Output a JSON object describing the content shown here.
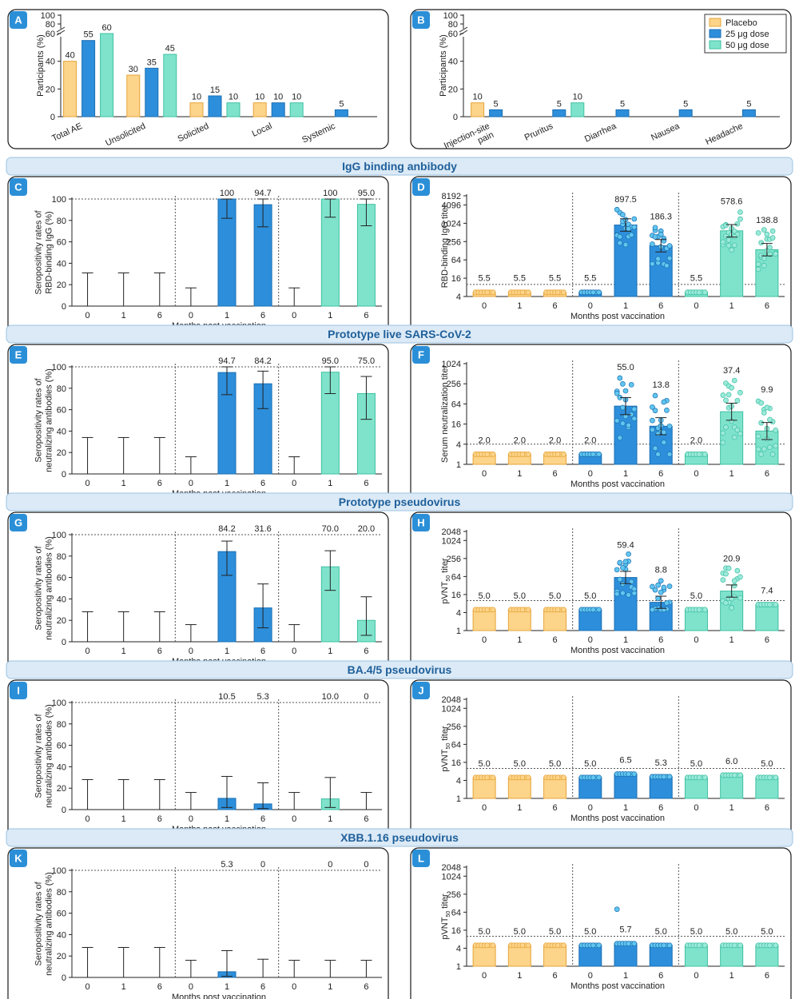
{
  "colors": {
    "placebo": "#fcd48a",
    "placebo_edge": "#e6a53a",
    "d25": "#2d8fdb",
    "d25_edge": "#1b6fb3",
    "d50": "#7fe3cc",
    "d50_edge": "#3ec1a2",
    "dot25": "#61c6ee",
    "dot50": "#9be9da"
  },
  "legend": [
    "Placebo",
    "25 μg dose",
    "50 μg dose"
  ],
  "section_titles": [
    "IgG binding anbibody",
    "Prototype live SARS-CoV-2",
    "Prototype pseudovirus",
    "BA.4/5 pseudovirus",
    "XBB.1.16 pseudovirus"
  ],
  "xlabel": "Months post vaccination",
  "months": [
    "0",
    "1",
    "6"
  ],
  "chart_data": [
    {
      "panel": "A",
      "type": "bar",
      "ylabel": "Participants (%)",
      "yticks": [
        "0",
        "20",
        "40",
        "60",
        "80",
        "100"
      ],
      "categories": [
        "Total AE",
        "Unsolicited",
        "Solicited",
        "Local",
        "Systemic"
      ],
      "series": [
        {
          "name": "Placebo",
          "values": [
            40,
            30,
            10,
            10,
            null
          ]
        },
        {
          "name": "25 μg dose",
          "values": [
            55,
            35,
            15,
            10,
            5
          ]
        },
        {
          "name": "50 μg dose",
          "values": [
            60,
            45,
            10,
            10,
            null
          ]
        }
      ],
      "labels": [
        [
          "40",
          "55",
          "60"
        ],
        [
          "30",
          "35",
          "45"
        ],
        [
          "10",
          "15",
          "10"
        ],
        [
          "10",
          "10",
          "10"
        ],
        [
          "",
          "5",
          ""
        ]
      ]
    },
    {
      "panel": "B",
      "type": "bar",
      "ylabel": "Participants (%)",
      "yticks": [
        "0",
        "20",
        "40",
        "60",
        "80",
        "100"
      ],
      "categories": [
        "Injection-site\npain",
        "Pruritus",
        "Diarrhea",
        "Nausea",
        "Headache"
      ],
      "series": [
        {
          "name": "Placebo",
          "values": [
            10,
            null,
            null,
            null,
            null
          ]
        },
        {
          "name": "25 μg dose",
          "values": [
            5,
            5,
            5,
            5,
            5
          ]
        },
        {
          "name": "50 μg dose",
          "values": [
            null,
            10,
            null,
            null,
            null
          ]
        }
      ],
      "labels": [
        [
          "10",
          "5",
          ""
        ],
        [
          "",
          "5",
          "10"
        ],
        [
          "",
          "5",
          ""
        ],
        [
          "",
          "5",
          ""
        ],
        [
          "",
          "5",
          ""
        ]
      ]
    },
    {
      "panel": "C",
      "type": "bar",
      "ylabel": "Seropositivity rates of\nRBD-binding IgG (%)",
      "yticks": [
        "0",
        "20",
        "40",
        "60",
        "80",
        "100"
      ],
      "values": [
        0,
        0,
        0,
        0,
        100,
        94.7,
        0,
        100,
        95.0
      ],
      "upper": [
        31,
        31,
        31,
        17,
        100,
        100,
        17,
        100,
        100
      ],
      "lower": [
        0,
        0,
        0,
        0,
        82,
        74,
        0,
        83,
        75
      ],
      "labels": [
        "",
        "",
        "",
        "",
        "100",
        "94.7",
        "",
        "100",
        "95.0"
      ]
    },
    {
      "panel": "D",
      "type": "bar",
      "ylabel": "RBD-binding IgG titer",
      "yticks": [
        "4",
        "16",
        "64",
        "256",
        "1024",
        "4096",
        "8192"
      ],
      "values": [
        5.5,
        5.5,
        5.5,
        5.5,
        897.5,
        186.3,
        5.5,
        578.6,
        138.8
      ],
      "labels": [
        "5.5",
        "5.5",
        "5.5",
        "5.5",
        "897.5",
        "186.3",
        "5.5",
        "578.6",
        "138.8"
      ],
      "cutoff": 10
    },
    {
      "panel": "E",
      "type": "bar",
      "ylabel": "Seropositivity rates of\nneutralizing antibodies (%)",
      "yticks": [
        "0",
        "20",
        "40",
        "60",
        "80",
        "100"
      ],
      "values": [
        0,
        0,
        0,
        0,
        94.7,
        84.2,
        0,
        95.0,
        75.0
      ],
      "upper": [
        34,
        34,
        34,
        16,
        100,
        96,
        16,
        100,
        91
      ],
      "lower": [
        0,
        0,
        0,
        0,
        74,
        61,
        0,
        75,
        51
      ],
      "labels": [
        "",
        "",
        "",
        "",
        "94.7",
        "84.2",
        "",
        "95.0",
        "75.0"
      ]
    },
    {
      "panel": "F",
      "type": "bar",
      "ylabel": "Serum neutralization titer",
      "yticks": [
        "1",
        "4",
        "16",
        "64",
        "256",
        "1024"
      ],
      "values": [
        2.0,
        2.0,
        2.0,
        2.0,
        55.0,
        13.8,
        2.0,
        37.4,
        9.9
      ],
      "labels": [
        "2.0",
        "2.0",
        "2.0",
        "2.0",
        "55.0",
        "13.8",
        "2.0",
        "37.4",
        "9.9"
      ],
      "cutoff": 4
    },
    {
      "panel": "G",
      "type": "bar",
      "ylabel": "Seropositivity rates of\nneutralizing antibodies (%)",
      "yticks": [
        "0",
        "20",
        "40",
        "60",
        "80",
        "100"
      ],
      "values": [
        0,
        0,
        0,
        0,
        84.2,
        31.6,
        0,
        70.0,
        20.0
      ],
      "upper": [
        28,
        28,
        28,
        16,
        94,
        54,
        16,
        85,
        42
      ],
      "lower": [
        0,
        0,
        0,
        0,
        62,
        13,
        0,
        48,
        6
      ],
      "labels": [
        "",
        "",
        "",
        "",
        "84.2",
        "31.6",
        "",
        "70.0",
        "20.0"
      ]
    },
    {
      "panel": "H",
      "type": "bar",
      "ylabel": "pVNT50 titer",
      "yticks": [
        "1",
        "4",
        "16",
        "64",
        "256",
        "1024",
        "2048"
      ],
      "values": [
        5.0,
        5.0,
        5.0,
        5.0,
        59.4,
        8.8,
        5.0,
        20.9,
        7.4
      ],
      "labels": [
        "5.0",
        "5.0",
        "5.0",
        "5.0",
        "59.4",
        "8.8",
        "5.0",
        "20.9",
        "7.4"
      ],
      "cutoff": 10
    },
    {
      "panel": "I",
      "type": "bar",
      "ylabel": "Seropositivity rates of\nneutralizing antibodies (%)",
      "yticks": [
        "0",
        "20",
        "40",
        "60",
        "80",
        "100"
      ],
      "values": [
        0,
        0,
        0,
        0,
        10.5,
        5.3,
        0,
        10.0,
        0
      ],
      "upper": [
        28,
        28,
        28,
        16,
        31,
        25,
        16,
        30,
        16
      ],
      "lower": [
        0,
        0,
        0,
        0,
        2,
        1,
        0,
        2,
        0
      ],
      "labels": [
        "",
        "",
        "",
        "",
        "10.5",
        "5.3",
        "",
        "10.0",
        "0"
      ]
    },
    {
      "panel": "J",
      "type": "bar",
      "ylabel": "pVNT50 titer",
      "yticks": [
        "1",
        "4",
        "16",
        "64",
        "256",
        "1024",
        "2048"
      ],
      "values": [
        5.0,
        5.0,
        5.0,
        5.0,
        6.5,
        5.3,
        5.0,
        6.0,
        5.0
      ],
      "labels": [
        "5.0",
        "5.0",
        "5.0",
        "5.0",
        "6.5",
        "5.3",
        "5.0",
        "6.0",
        "5.0"
      ],
      "cutoff": 10
    },
    {
      "panel": "K",
      "type": "bar",
      "ylabel": "Seropositivity rates of\nneutralizing antibodies (%)",
      "yticks": [
        "0",
        "20",
        "40",
        "60",
        "80",
        "100"
      ],
      "values": [
        0,
        0,
        0,
        0,
        5.3,
        0,
        0,
        0,
        0
      ],
      "upper": [
        28,
        28,
        28,
        16,
        25,
        17,
        16,
        16,
        16
      ],
      "lower": [
        0,
        0,
        0,
        0,
        1,
        0,
        0,
        0,
        0
      ],
      "labels": [
        "",
        "",
        "",
        "",
        "5.3",
        "0",
        "",
        "0",
        "0"
      ]
    },
    {
      "panel": "L",
      "type": "bar",
      "ylabel": "pVNT50 titer",
      "yticks": [
        "1",
        "4",
        "16",
        "64",
        "256",
        "1024",
        "2048"
      ],
      "values": [
        5.0,
        5.0,
        5.0,
        5.0,
        5.7,
        5.0,
        5.0,
        5.0,
        5.0
      ],
      "labels": [
        "5.0",
        "5.0",
        "5.0",
        "5.0",
        "5.7",
        "5.0",
        "5.0",
        "5.0",
        "5.0"
      ],
      "cutoff": 10
    }
  ]
}
